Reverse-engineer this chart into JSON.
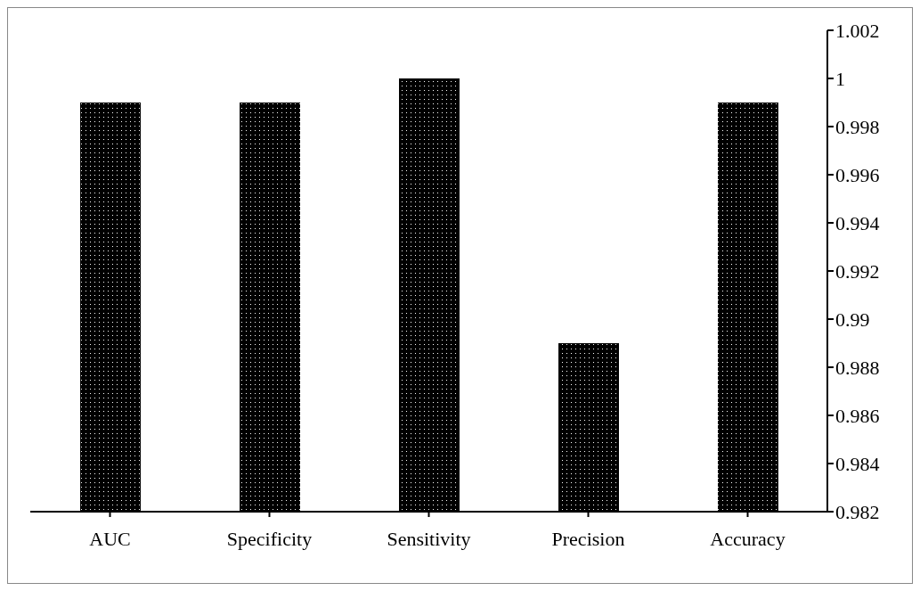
{
  "chart_data": {
    "type": "bar",
    "categories": [
      "AUC",
      "Specificity",
      "Sensitivity",
      "Precision",
      "Accuracy"
    ],
    "values": [
      0.999,
      0.999,
      1.0,
      0.989,
      0.999
    ],
    "color": "#000000",
    "ylim": [
      0.982,
      1.002
    ],
    "yticks": [
      0.982,
      0.984,
      0.986,
      0.988,
      0.99,
      0.992,
      0.994,
      0.996,
      0.998,
      1,
      1.002
    ],
    "grid": false
  }
}
